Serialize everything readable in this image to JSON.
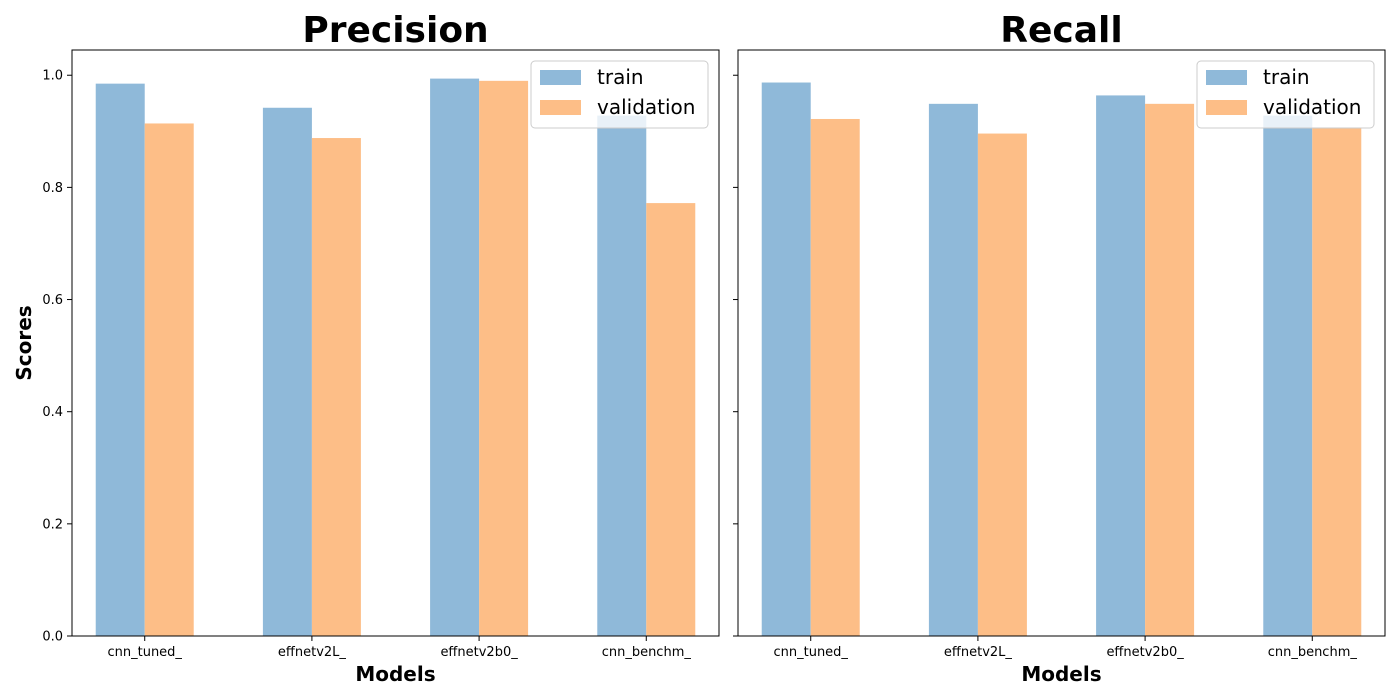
{
  "chart_data": [
    {
      "type": "bar",
      "title": "Precision",
      "xlabel": "Models",
      "ylabel": "Scores",
      "categories": [
        "cnn_tuned_",
        "effnetv2L_",
        "effnetv2b0_",
        "cnn_benchm_"
      ],
      "series": [
        {
          "name": "train",
          "values": [
            0.985,
            0.942,
            0.994,
            0.928
          ],
          "color": "#8fb9d9"
        },
        {
          "name": "validation",
          "values": [
            0.914,
            0.888,
            0.99,
            0.772
          ],
          "color": "#fdbe87"
        }
      ],
      "ylim": [
        0,
        1.045
      ],
      "yticks": [
        "0.0",
        "0.2",
        "0.4",
        "0.6",
        "0.8",
        "1.0"
      ],
      "legend": "top-right",
      "grid": false
    },
    {
      "type": "bar",
      "title": "Recall",
      "xlabel": "Models",
      "ylabel": "",
      "categories": [
        "cnn_tuned_",
        "effnetv2L_",
        "effnetv2b0_",
        "cnn_benchm_"
      ],
      "series": [
        {
          "name": "train",
          "values": [
            0.987,
            0.949,
            0.964,
            0.928
          ],
          "color": "#8fb9d9"
        },
        {
          "name": "validation",
          "values": [
            0.922,
            0.896,
            0.949,
            0.907
          ],
          "color": "#fdbe87"
        }
      ],
      "ylim": [
        0,
        1.045
      ],
      "yticks": [],
      "legend": "top-right",
      "grid": false
    }
  ]
}
